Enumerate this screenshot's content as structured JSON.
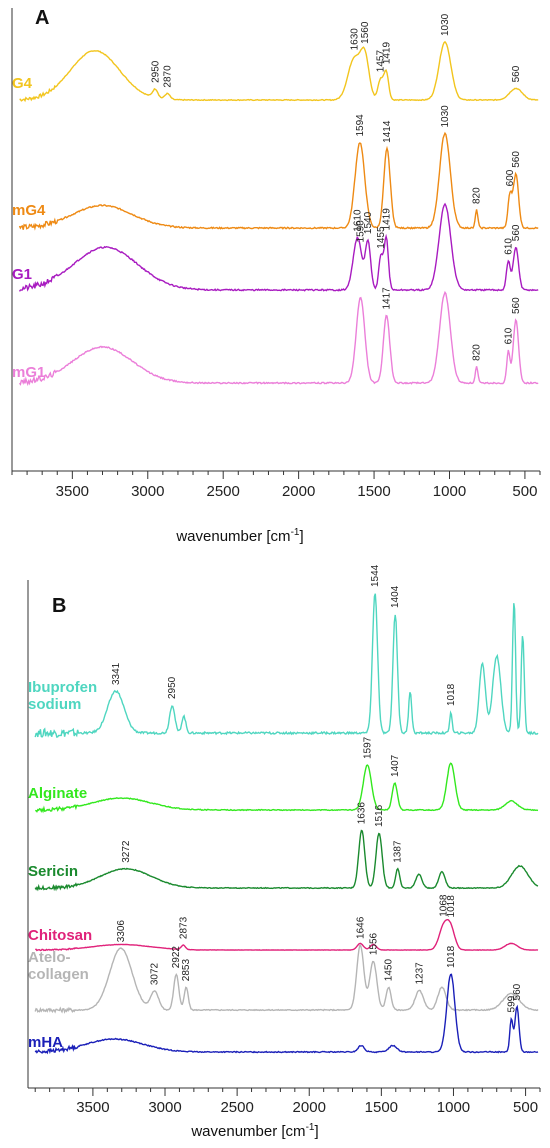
{
  "chart_data": [
    {
      "panel": "A",
      "type": "line",
      "xlabel": "wavenumber [cm",
      "xlabel_sup": "-1",
      "xlabel_end": "]",
      "xlim": [
        3900,
        400
      ],
      "x_reversed": true,
      "xticks": [
        3500,
        3000,
        2500,
        2000,
        1500,
        1000,
        500
      ],
      "yticks": false,
      "grid": false,
      "series": [
        {
          "name": "G4",
          "color": "#F2C51E",
          "peaks": [
            {
              "x": 2950,
              "label": "2950"
            },
            {
              "x": 2870,
              "label": "2870"
            },
            {
              "x": 1630,
              "label": "1630"
            },
            {
              "x": 1560,
              "label": "1560"
            },
            {
              "x": 1457,
              "label": "1457"
            },
            {
              "x": 1419,
              "label": "1419"
            },
            {
              "x": 1030,
              "label": "1030"
            },
            {
              "x": 560,
              "label": "560"
            }
          ]
        },
        {
          "name": "mG4",
          "color": "#EE8A14",
          "peaks": [
            {
              "x": 1594,
              "label": "1594"
            },
            {
              "x": 1414,
              "label": "1414"
            },
            {
              "x": 1030,
              "label": "1030"
            },
            {
              "x": 820,
              "label": "820"
            },
            {
              "x": 600,
              "label": "600"
            },
            {
              "x": 560,
              "label": "560"
            }
          ]
        },
        {
          "name": "G1",
          "color": "#A81BC0",
          "peaks": [
            {
              "x": 1610,
              "label": "1610"
            },
            {
              "x": 1590,
              "label": "1590"
            },
            {
              "x": 1540,
              "label": "1540"
            },
            {
              "x": 1455,
              "label": "1455"
            },
            {
              "x": 1419,
              "label": "1419"
            },
            {
              "x": 610,
              "label": "610"
            },
            {
              "x": 560,
              "label": "560"
            }
          ]
        },
        {
          "name": "mG1",
          "color": "#EB7FD9",
          "peaks": [
            {
              "x": 1417,
              "label": "1417"
            },
            {
              "x": 820,
              "label": "820"
            },
            {
              "x": 610,
              "label": "610"
            },
            {
              "x": 560,
              "label": "560"
            }
          ]
        }
      ]
    },
    {
      "panel": "B",
      "type": "line",
      "xlabel": "wavenumber [cm",
      "xlabel_sup": "-1",
      "xlabel_end": "]",
      "xlim": [
        3950,
        400
      ],
      "x_reversed": true,
      "xticks": [
        3500,
        3000,
        2500,
        2000,
        1500,
        1000,
        500
      ],
      "yticks": false,
      "grid": false,
      "series": [
        {
          "name": "Ibuprofen\nsodium",
          "color": "#4FD6C0",
          "peaks": [
            {
              "x": 3341,
              "label": "3341"
            },
            {
              "x": 2950,
              "label": "2950"
            },
            {
              "x": 1544,
              "label": "1544"
            },
            {
              "x": 1404,
              "label": "1404"
            },
            {
              "x": 1018,
              "label": "1018"
            }
          ]
        },
        {
          "name": "Alginate",
          "color": "#33E81E",
          "peaks": [
            {
              "x": 1597,
              "label": "1597"
            },
            {
              "x": 1407,
              "label": "1407"
            }
          ]
        },
        {
          "name": "Sericin",
          "color": "#1A8A2E",
          "peaks": [
            {
              "x": 3272,
              "label": "3272"
            },
            {
              "x": 1636,
              "label": "1636"
            },
            {
              "x": 1516,
              "label": "1516"
            },
            {
              "x": 1387,
              "label": "1387"
            }
          ]
        },
        {
          "name": "Chitosan",
          "color": "#E0227A",
          "peaks": [
            {
              "x": 2873,
              "label": "2873"
            },
            {
              "x": 1068,
              "label": "1068"
            },
            {
              "x": 1018,
              "label": "1018"
            }
          ]
        },
        {
          "name": "Atelo-\ncollagen",
          "color": "#B5B5B5",
          "peaks": [
            {
              "x": 3306,
              "label": "3306"
            },
            {
              "x": 3072,
              "label": "3072"
            },
            {
              "x": 2922,
              "label": "2922"
            },
            {
              "x": 2853,
              "label": "2853"
            },
            {
              "x": 1646,
              "label": "1646"
            },
            {
              "x": 1556,
              "label": "1556"
            },
            {
              "x": 1450,
              "label": "1450"
            },
            {
              "x": 1237,
              "label": "1237"
            }
          ]
        },
        {
          "name": "mHA",
          "color": "#1A1FB8",
          "peaks": [
            {
              "x": 1018,
              "label": "1018"
            },
            {
              "x": 599,
              "label": "599"
            },
            {
              "x": 560,
              "label": "560"
            }
          ]
        }
      ]
    }
  ]
}
